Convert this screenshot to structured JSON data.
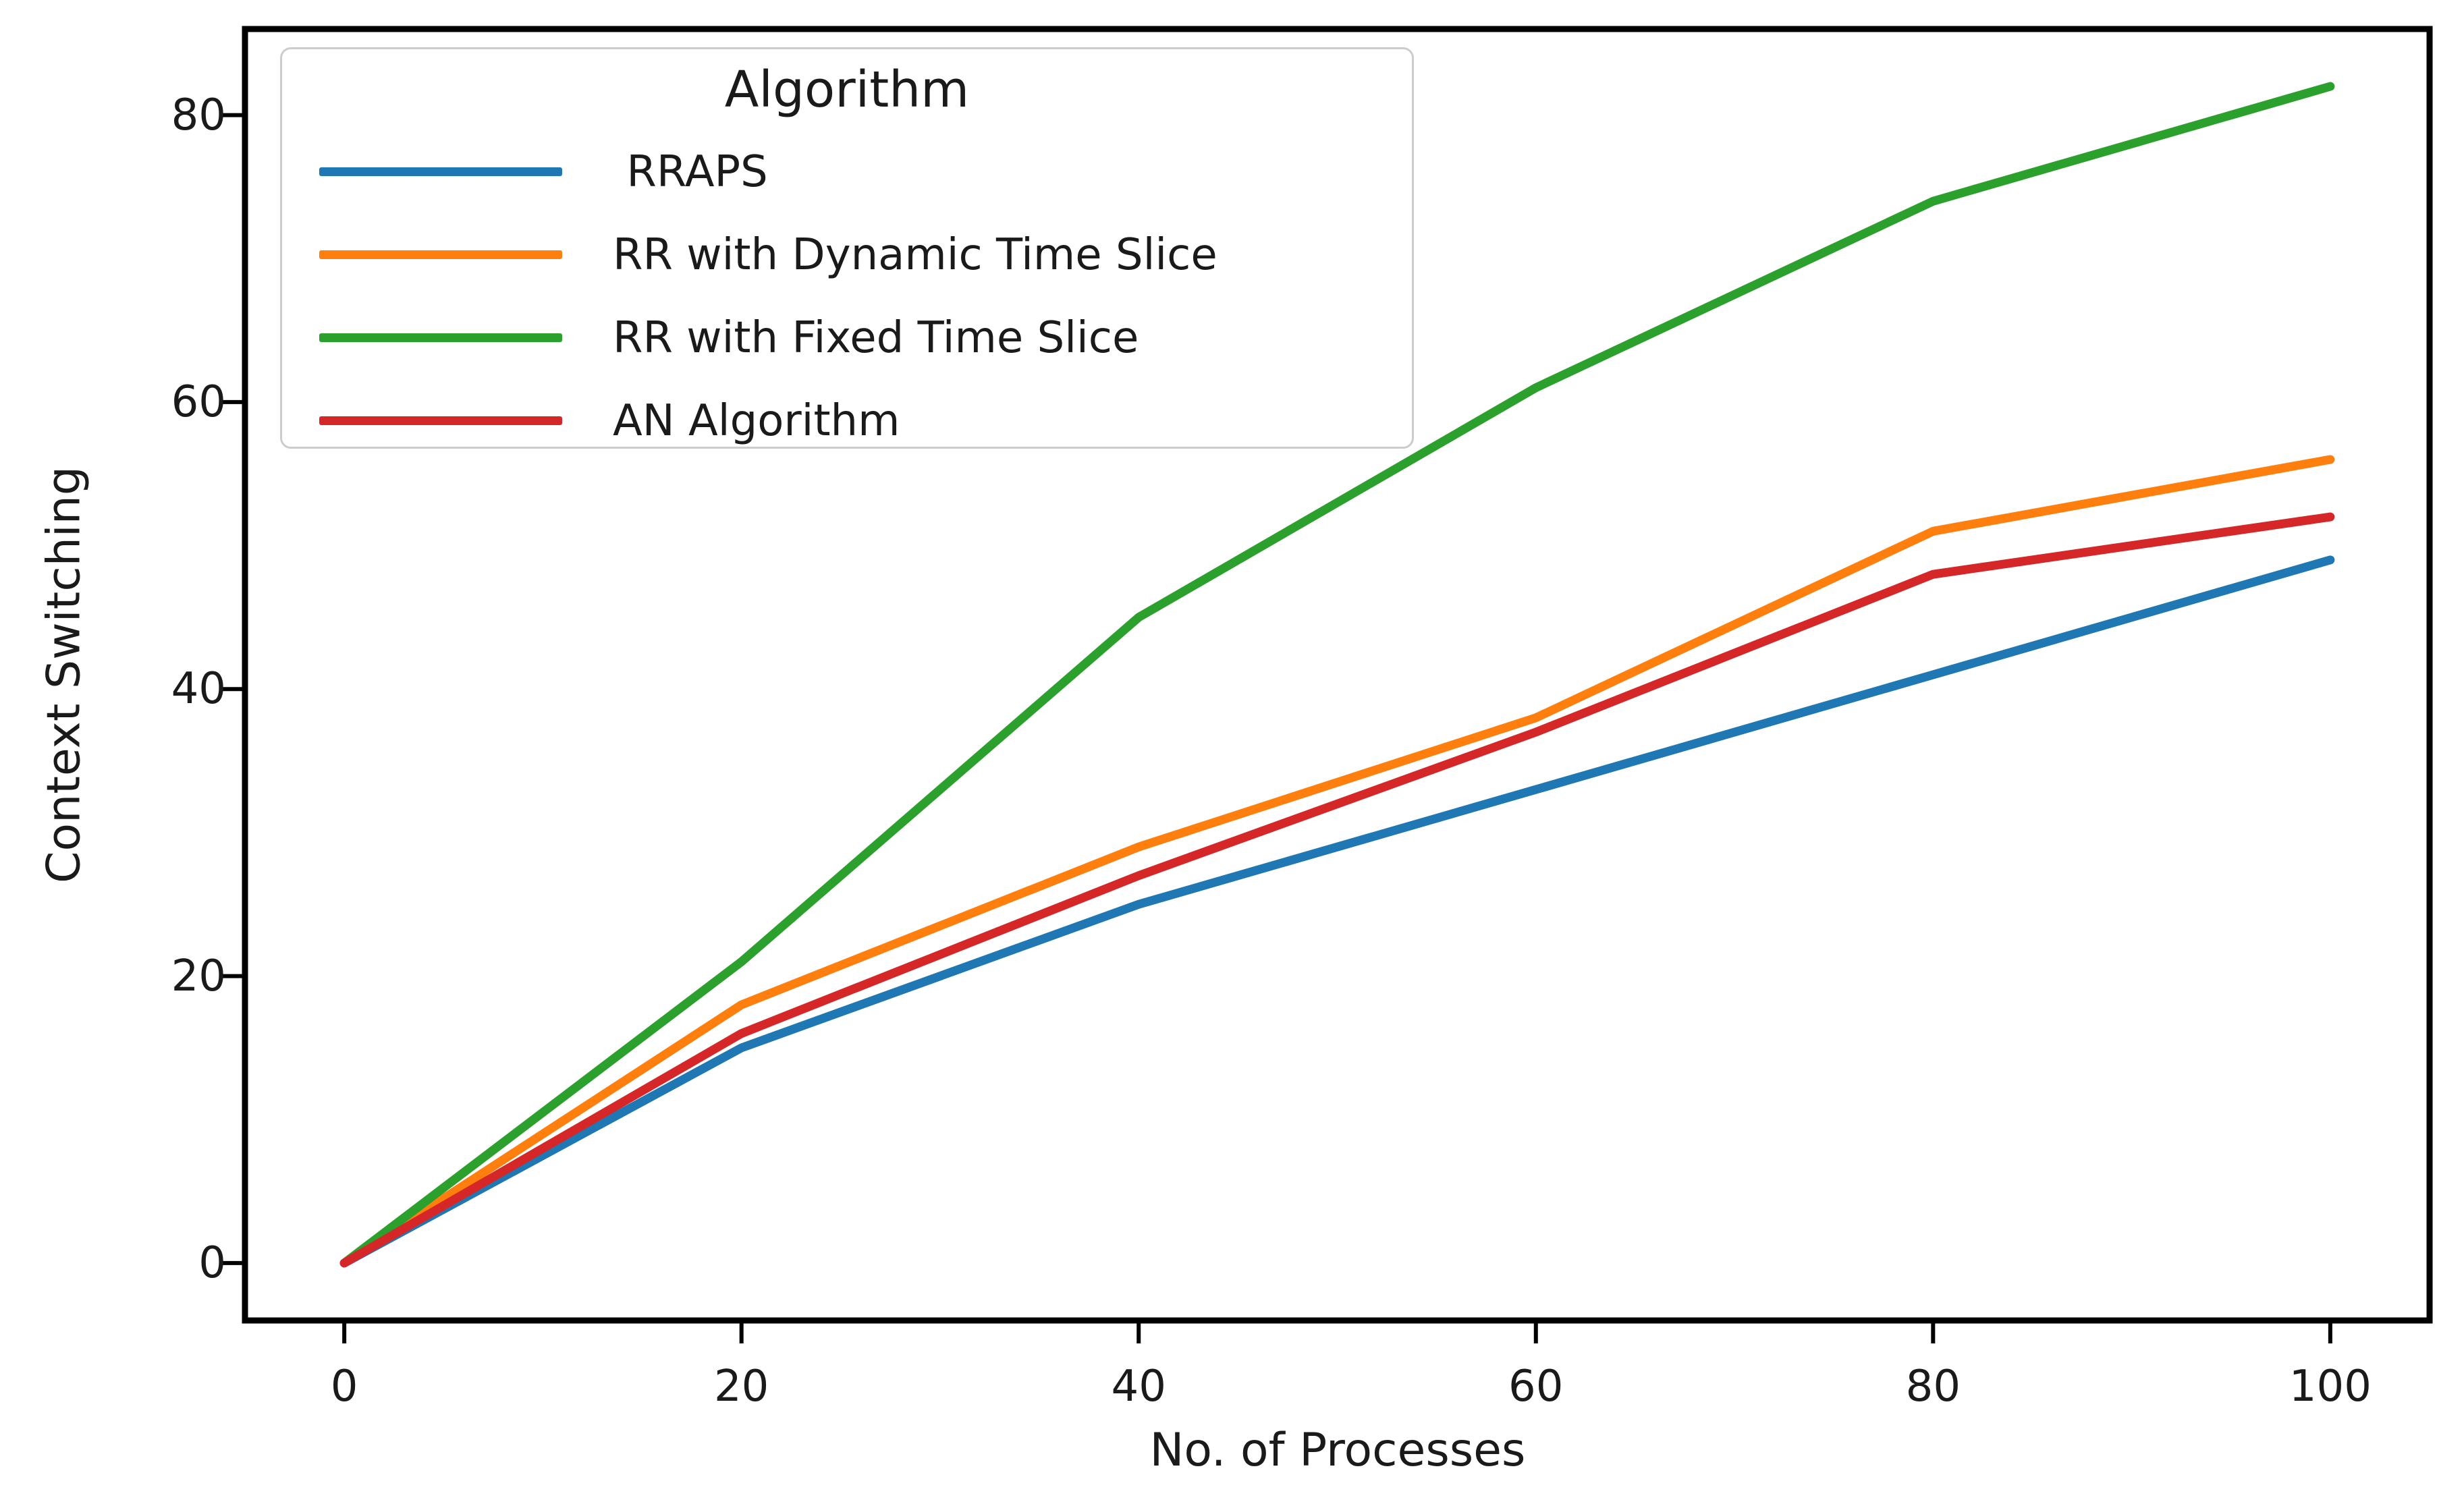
{
  "chart_data": {
    "type": "line",
    "title": "",
    "xlabel": "No. of Processes",
    "ylabel": "Context Switching",
    "legend_title": "Algorithm",
    "legend_position": "upper left",
    "grid": false,
    "x": [
      0,
      20,
      40,
      60,
      80,
      100
    ],
    "x_ticks": [
      "0",
      "20",
      "40",
      "60",
      "80",
      "100"
    ],
    "y_ticks": [
      "0",
      "20",
      "40",
      "60",
      "80"
    ],
    "x_tick_values": [
      0,
      20,
      40,
      60,
      80,
      100
    ],
    "y_tick_values": [
      0,
      20,
      40,
      60,
      80
    ],
    "xlim": [
      -5,
      105
    ],
    "ylim": [
      -4,
      86
    ],
    "axis_color": "#000000",
    "text_color": "#1a1a1a",
    "series": [
      {
        "name": " RRAPS",
        "color": "#1f77b4",
        "values": [
          0,
          15,
          25,
          33,
          41,
          49
        ]
      },
      {
        "name": "RR with Dynamic Time Slice",
        "color": "#ff7f0e",
        "values": [
          0,
          18,
          29,
          38,
          51,
          56
        ]
      },
      {
        "name": "RR with Fixed Time Slice",
        "color": "#2ca02c",
        "values": [
          0,
          21,
          45,
          61,
          74,
          82
        ]
      },
      {
        "name": "AN Algorithm",
        "color": "#d62728",
        "values": [
          0,
          16,
          27,
          37,
          48,
          52
        ]
      }
    ]
  }
}
